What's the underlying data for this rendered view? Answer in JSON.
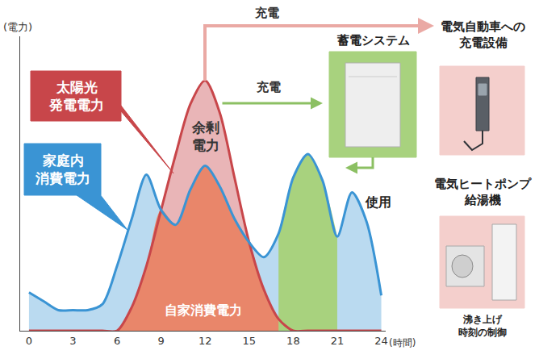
{
  "chart_data": {
    "type": "area",
    "x": [
      0,
      1,
      2,
      3,
      4,
      5,
      6,
      7,
      8,
      9,
      10,
      11,
      12,
      13,
      14,
      15,
      16,
      17,
      18,
      19,
      20,
      21,
      22,
      23,
      24
    ],
    "xlim": [
      -0.6,
      24.3
    ],
    "xticks": [
      0,
      3,
      6,
      9,
      12,
      15,
      18,
      21,
      24
    ],
    "ylim": [
      0,
      100
    ],
    "yticks": [],
    "tick_labels": "x",
    "grid": false,
    "x_label": "(時間)",
    "y_label": "(電力)",
    "series": [
      {
        "name": "太陽光\n発電電力",
        "color": "#c8464a",
        "values": [
          0,
          0,
          0,
          0,
          0,
          0,
          0,
          8,
          22,
          41,
          60,
          77,
          85,
          74,
          52,
          30,
          14,
          4,
          0,
          0,
          0,
          0,
          0,
          0,
          0
        ]
      },
      {
        "name": "家庭内\n消費電力",
        "color": "#3a94d4",
        "values": [
          13,
          10,
          7,
          7,
          7,
          9,
          22,
          38,
          53,
          41,
          36,
          48,
          56,
          49,
          38,
          30,
          25,
          33,
          52,
          60,
          51,
          32,
          47,
          37,
          12
        ]
      },
      {
        "name": "使用",
        "color": "#a8d27e",
        "values": [
          null,
          null,
          null,
          null,
          null,
          null,
          null,
          null,
          null,
          null,
          null,
          null,
          null,
          null,
          null,
          null,
          null,
          33,
          52,
          60,
          51,
          32,
          null,
          null,
          null
        ]
      }
    ],
    "annotations": {
      "surplus": "余剰\n電力",
      "self_consumption": "自家消費電力",
      "charge_ev": "充電",
      "charge_storage": "充電",
      "storage": "蓄電システム",
      "ev_charger": "電気自動車への\n充電設備",
      "heat_pump": "電気ヒートポンプ\n給湯機",
      "heat_pump_control": "沸き上げ\n時刻の制御"
    }
  }
}
